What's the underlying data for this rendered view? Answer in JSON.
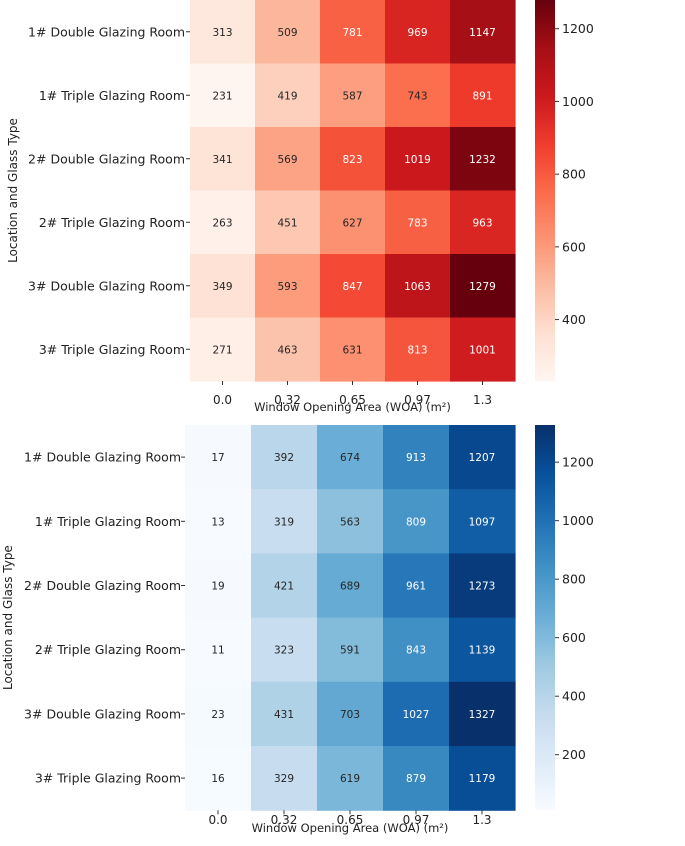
{
  "chart_data": [
    {
      "type": "heatmap",
      "title": "",
      "xlabel": "Window Opening Area (WOA) (m²)",
      "ylabel": "Location and Glass Type",
      "x_ticks": [
        "0.0",
        "0.32",
        "0.65",
        "0.97",
        "1.3"
      ],
      "y_categories": [
        "1# Double Glazing Room",
        "1# Triple Glazing Room",
        "2# Double Glazing Room",
        "2# Triple Glazing Room",
        "3# Double Glazing Room",
        "3# Triple Glazing Room"
      ],
      "values": [
        [
          313,
          509,
          781,
          969,
          1147
        ],
        [
          231,
          419,
          587,
          743,
          891
        ],
        [
          341,
          569,
          823,
          1019,
          1232
        ],
        [
          263,
          451,
          627,
          783,
          963
        ],
        [
          349,
          593,
          847,
          1063,
          1279
        ],
        [
          271,
          463,
          631,
          813,
          1001
        ]
      ],
      "colormap": "Reds",
      "color_range": [
        231,
        1279
      ],
      "colorbar_ticks": [
        400,
        600,
        800,
        1000,
        1200
      ],
      "colorbar_labels": [
        "400",
        "600",
        "800",
        "1000",
        "1200"
      ]
    },
    {
      "type": "heatmap",
      "title": "",
      "xlabel": "Window Opening Area (WOA) (m²)",
      "ylabel": "Location and Glass Type",
      "x_ticks": [
        "0.0",
        "0.32",
        "0.65",
        "0.97",
        "1.3"
      ],
      "y_categories": [
        "1# Double Glazing Room",
        "1# Triple Glazing Room",
        "2# Double Glazing Room",
        "2# Triple Glazing Room",
        "3# Double Glazing Room",
        "3# Triple Glazing Room"
      ],
      "values": [
        [
          17,
          392,
          674,
          913,
          1207
        ],
        [
          13,
          319,
          563,
          809,
          1097
        ],
        [
          19,
          421,
          689,
          961,
          1273
        ],
        [
          11,
          323,
          591,
          843,
          1139
        ],
        [
          23,
          431,
          703,
          1027,
          1327
        ],
        [
          16,
          329,
          619,
          879,
          1179
        ]
      ],
      "colormap": "Blues",
      "color_range": [
        11,
        1327
      ],
      "colorbar_ticks": [
        200,
        400,
        600,
        800,
        1000,
        1200
      ],
      "colorbar_labels": [
        "200",
        "400",
        "600",
        "800",
        "1000",
        "1200"
      ]
    }
  ]
}
